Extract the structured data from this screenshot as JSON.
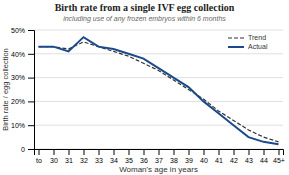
{
  "chart_data": {
    "type": "line",
    "title": "Birth rate from a single IVF egg collection",
    "subtitle": "including use of any frozen embryos within 6 months",
    "xlabel": "Woman's age in years",
    "ylabel": "Birth rate / egg collection",
    "categories": [
      "to",
      "30",
      "31",
      "32",
      "33",
      "34",
      "35",
      "36",
      "37",
      "38",
      "39",
      "40",
      "41",
      "42",
      "43",
      "44",
      "45+"
    ],
    "series": [
      {
        "name": "Trend",
        "color": "#333333",
        "line_style": "dashed",
        "values": [
          43,
          43,
          42,
          45,
          43,
          41,
          39,
          36,
          33,
          29,
          25,
          21,
          16,
          12,
          8,
          5,
          3
        ]
      },
      {
        "name": "Actual",
        "color": "#1a4a8a",
        "line_style": "solid",
        "values": [
          43,
          43,
          41,
          47,
          43,
          42,
          40,
          38,
          34,
          30,
          26,
          20,
          15,
          10,
          5,
          3,
          2
        ]
      }
    ],
    "ylim": [
      0,
      50
    ],
    "yticks": [
      0,
      {
        "value": 10,
        "label": "10%"
      },
      {
        "value": 20,
        "label": "20%"
      },
      {
        "value": 30,
        "label": "30%"
      },
      {
        "value": 40,
        "label": "40%"
      },
      {
        "value": 50,
        "label": "50%"
      }
    ],
    "grid": true,
    "legend": "upper-right"
  }
}
